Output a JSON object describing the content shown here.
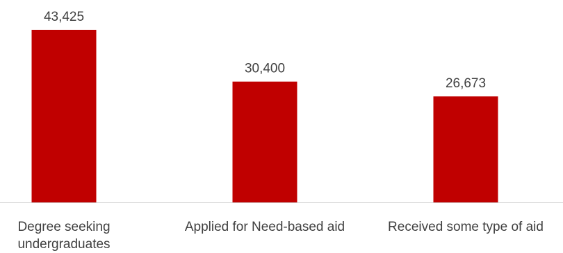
{
  "chart_data": {
    "type": "bar",
    "categories": [
      [
        "Degree seeking",
        "undergraduates"
      ],
      [
        "Applied for Need-based aid"
      ],
      [
        "Received some type of aid"
      ]
    ],
    "values": [
      43425,
      30400,
      26673
    ],
    "value_labels": [
      "43,425",
      "30,400",
      "26,673"
    ],
    "ylim": [
      0,
      43425
    ],
    "grid": false,
    "legend": "none",
    "bar_color": "#c00000",
    "axis_color": "#d0d0d0",
    "text_color": "#404040"
  }
}
